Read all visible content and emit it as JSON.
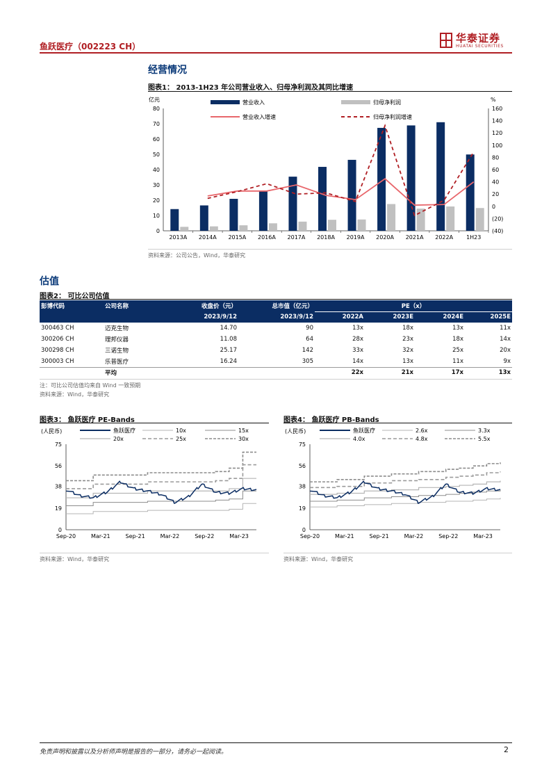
{
  "header": {
    "title": "鱼跃医疗（002223 CH）",
    "logo_cn": "华泰证券",
    "logo_en": "HUATAI SECURITIES"
  },
  "section1": {
    "title": "经营情况"
  },
  "figure1": {
    "title": "图表1：  2013-1H23 年公司营业收入、归母净利润及其同比增速",
    "source": "资料来源：公司公告，Wind，华泰研究",
    "left_unit": "亿元",
    "right_unit": "%",
    "legend": [
      "营业收入",
      "归母净利润",
      "营业收入增速",
      "归母净利润增速"
    ],
    "left_ticks": [
      "0",
      "10",
      "20",
      "30",
      "40",
      "50",
      "60",
      "70",
      "80"
    ],
    "right_ticks": [
      "(40)",
      "(20)",
      "0",
      "20",
      "40",
      "60",
      "80",
      "100",
      "120",
      "140",
      "160"
    ]
  },
  "chart_data": [
    {
      "type": "bar",
      "categories": [
        "2013A",
        "2014A",
        "2015A",
        "2016A",
        "2017A",
        "2018A",
        "2019A",
        "2020A",
        "2021A",
        "2022A",
        "1H23"
      ],
      "series": [
        {
          "name": "营业收入",
          "axis": "left",
          "values": [
            14.2,
            16.6,
            20.9,
            26.1,
            35.4,
            41.8,
            46.4,
            67.3,
            68.9,
            71.0,
            49.9
          ]
        },
        {
          "name": "归母净利润",
          "axis": "left",
          "values": [
            2.6,
            2.9,
            3.6,
            4.9,
            6.0,
            7.2,
            7.4,
            17.5,
            14.5,
            15.9,
            14.9
          ]
        },
        {
          "name": "营业收入增速",
          "type": "line",
          "axis": "right",
          "values": [
            null,
            17,
            25,
            25,
            35,
            18,
            11,
            45,
            2,
            3,
            40
          ]
        },
        {
          "name": "归母净利润增速",
          "type": "line",
          "dashed": true,
          "axis": "right",
          "values": [
            null,
            13,
            24,
            37,
            20,
            22,
            8,
            132,
            -15,
            10,
            89
          ]
        }
      ],
      "ylim_left": [
        0,
        80
      ],
      "ylim_right": [
        -40,
        160
      ],
      "colors": {
        "revenue": "#0b2d63",
        "profit": "#c0c0c0",
        "revenue_growth": "#e8666b",
        "profit_growth": "#b01e23"
      }
    },
    {
      "type": "line",
      "title": "图表3：  鱼跃医疗 PE-Bands",
      "ylabel": "(人民币)",
      "x_ticks": [
        "Sep-20",
        "Mar-21",
        "Sep-21",
        "Mar-22",
        "Sep-22",
        "Mar-23"
      ],
      "y_ticks": [
        "0",
        "19",
        "38",
        "56",
        "75"
      ],
      "ylim": [
        0,
        75
      ],
      "legend": [
        "鱼跃医疗",
        "10x",
        "15x",
        "20x",
        "25x",
        "30x"
      ],
      "series": [
        {
          "name": "鱼跃医疗",
          "values": [
            35,
            30,
            28,
            33,
            42,
            36,
            34,
            31,
            24,
            29,
            40,
            33,
            32,
            36,
            35
          ]
        },
        {
          "name": "10x",
          "values": [
            14,
            14,
            16,
            16,
            16,
            16,
            17,
            17,
            17,
            17,
            17,
            17,
            18,
            23,
            23
          ]
        },
        {
          "name": "15x",
          "values": [
            21,
            21,
            24,
            24,
            24,
            24,
            25,
            25,
            25,
            25,
            25,
            26,
            27,
            34,
            34
          ]
        },
        {
          "name": "20x",
          "values": [
            28,
            28,
            32,
            32,
            32,
            32,
            34,
            34,
            34,
            34,
            34,
            34,
            36,
            45,
            45
          ]
        },
        {
          "name": "25x",
          "values": [
            36,
            36,
            40,
            40,
            40,
            40,
            42,
            42,
            42,
            42,
            42,
            43,
            45,
            57,
            57
          ]
        },
        {
          "name": "30x",
          "values": [
            43,
            43,
            48,
            48,
            48,
            48,
            50,
            50,
            50,
            50,
            50,
            51,
            54,
            68,
            68
          ]
        }
      ]
    },
    {
      "type": "line",
      "title": "图表4：  鱼跃医疗 PB-Bands",
      "ylabel": "(人民币)",
      "x_ticks": [
        "Sep-20",
        "Mar-21",
        "Sep-21",
        "Mar-22",
        "Sep-22",
        "Mar-23"
      ],
      "y_ticks": [
        "0",
        "19",
        "38",
        "56",
        "75"
      ],
      "ylim": [
        0,
        75
      ],
      "legend": [
        "鱼跃医疗",
        "2.6x",
        "3.3x",
        "4.0x",
        "4.8x",
        "5.5x"
      ],
      "series": [
        {
          "name": "鱼跃医疗",
          "values": [
            35,
            30,
            28,
            33,
            42,
            36,
            34,
            31,
            24,
            29,
            40,
            33,
            32,
            36,
            35
          ]
        },
        {
          "name": "2.6x",
          "values": [
            20,
            20,
            21,
            21,
            22,
            22,
            23,
            23,
            24,
            24,
            25,
            25,
            26,
            27,
            28
          ]
        },
        {
          "name": "3.3x",
          "values": [
            25,
            25,
            26,
            26,
            28,
            28,
            29,
            29,
            30,
            30,
            31,
            32,
            33,
            34,
            35
          ]
        },
        {
          "name": "4.0x",
          "values": [
            31,
            31,
            32,
            32,
            34,
            34,
            35,
            35,
            37,
            37,
            38,
            39,
            40,
            42,
            43
          ]
        },
        {
          "name": "4.8x",
          "values": [
            37,
            37,
            38,
            38,
            41,
            41,
            43,
            43,
            44,
            44,
            46,
            47,
            48,
            50,
            51
          ]
        },
        {
          "name": "5.5x",
          "values": [
            42,
            42,
            44,
            44,
            47,
            47,
            49,
            49,
            51,
            51,
            53,
            54,
            56,
            58,
            59
          ]
        }
      ]
    }
  ],
  "section2": {
    "title": "估值"
  },
  "figure2": {
    "title": "图表2：  可比公司估值",
    "header": {
      "code": "彭博代码",
      "name": "公司名称",
      "price": "收盘价（元）",
      "mcap": "总市值（亿元）",
      "pe": "PE（x）",
      "price_date": "2023/9/12",
      "mcap_date": "2023/9/12",
      "years": [
        "2022A",
        "2023E",
        "2024E",
        "2025E"
      ]
    },
    "rows": [
      {
        "code": "300463 CH",
        "name": "迈克生物",
        "price": "14.70",
        "mcap": "90",
        "pe": [
          "13x",
          "18x",
          "13x",
          "11x"
        ]
      },
      {
        "code": "300206 CH",
        "name": "理邦仪器",
        "price": "11.08",
        "mcap": "64",
        "pe": [
          "28x",
          "23x",
          "18x",
          "14x"
        ]
      },
      {
        "code": "300298 CH",
        "name": "三诺生物",
        "price": "25.17",
        "mcap": "142",
        "pe": [
          "33x",
          "32x",
          "25x",
          "20x"
        ]
      },
      {
        "code": "300003 CH",
        "name": "乐普医疗",
        "price": "16.24",
        "mcap": "305",
        "pe": [
          "14x",
          "13x",
          "11x",
          "9x"
        ]
      }
    ],
    "average": {
      "label": "平均",
      "pe": [
        "22x",
        "21x",
        "17x",
        "13x"
      ]
    },
    "note": "注：可比公司估值均来自 Wind 一致预期",
    "source": "资料来源：Wind，华泰研究"
  },
  "figure3": {
    "title": "图表3：  鱼跃医疗 PE-Bands",
    "source": "资料来源：Wind，华泰研究"
  },
  "figure4": {
    "title": "图表4：  鱼跃医疗 PB-Bands",
    "source": "资料来源：Wind，华泰研究"
  },
  "footer": {
    "disclaimer": "免责声明和披露以及分析师声明是报告的一部分，请务必一起阅读。",
    "page": "2"
  }
}
